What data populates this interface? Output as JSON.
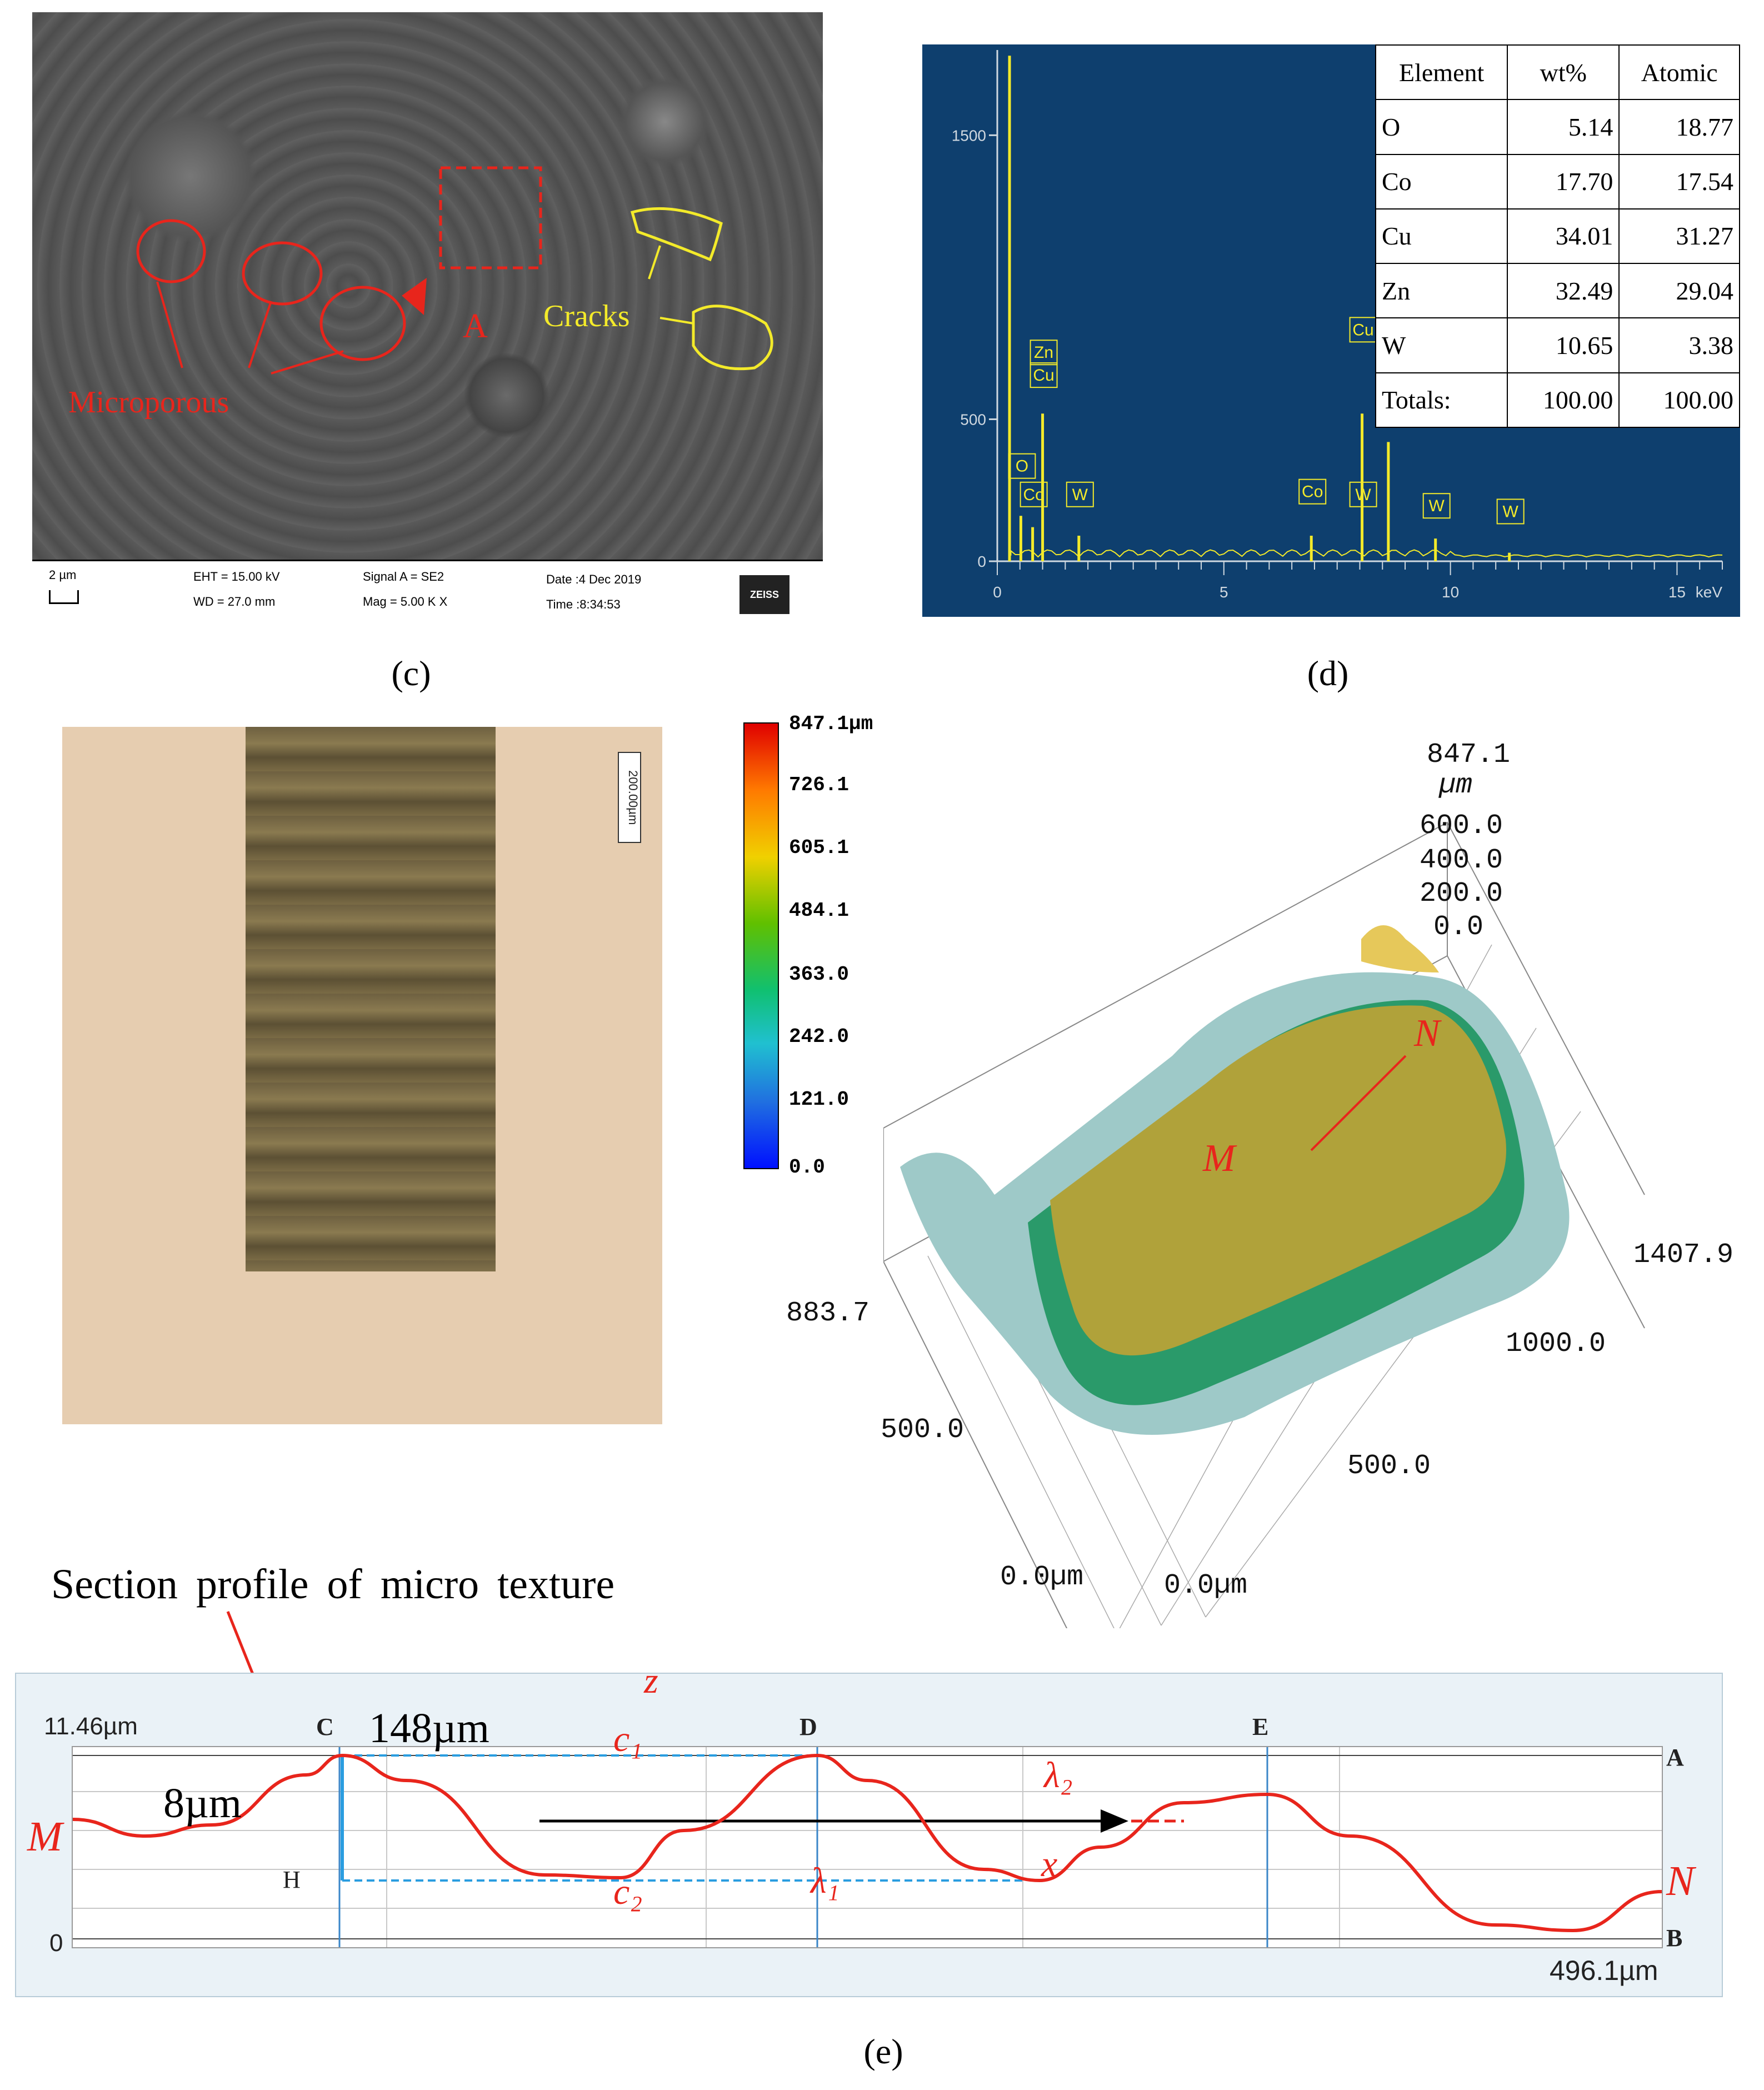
{
  "panel_c": {
    "labels": {
      "a": "A",
      "microporous": "Microporous",
      "cracks": "Cracks"
    },
    "databar": {
      "scale": "2 µm",
      "eht": "EHT = 15.00 kV",
      "wd": "WD = 27.0 mm",
      "signal": "Signal A = SE2",
      "mag": "Mag =     5.00 K X",
      "date": "Date :4 Dec 2019",
      "time": "Time :8:34:53",
      "logo": "ZEISS"
    },
    "caption": "(c)",
    "colors": {
      "red": "#e8251c",
      "yellow": "#f3ea2a"
    }
  },
  "panel_d": {
    "y_ticks": [
      "1500",
      "500",
      "0"
    ],
    "x_ticks": [
      "0",
      "5",
      "10",
      "15"
    ],
    "x_unit": "keV",
    "peaks": [
      "O",
      "Co",
      "Zn",
      "Cu",
      "W",
      "Co",
      "Cu",
      "W",
      "Zn",
      "W",
      "W"
    ],
    "table": {
      "headers": [
        "Element",
        "wt%",
        "Atomic"
      ],
      "rows": [
        [
          "O",
          "5.14",
          "18.77"
        ],
        [
          "Co",
          "17.70",
          "17.54"
        ],
        [
          "Cu",
          "34.01",
          "31.27"
        ],
        [
          "Zn",
          "32.49",
          "29.04"
        ],
        [
          "W",
          "10.65",
          "3.38"
        ],
        [
          "Totals:",
          "100.00",
          "100.00"
        ]
      ]
    },
    "caption": "(d)"
  },
  "chart_data": {
    "type": "bar",
    "xlabel": "keV",
    "xlim": [
      0,
      16
    ],
    "ylim": [
      0,
      1800
    ],
    "categories": [
      "O",
      "Co",
      "Zn/Cu",
      "W",
      "Co",
      "Cu",
      "Zn",
      "W",
      "W"
    ],
    "x": [
      0.52,
      0.78,
      1.0,
      1.8,
      6.93,
      8.05,
      8.63,
      9.67,
      11.3
    ],
    "values": [
      160,
      120,
      520,
      90,
      90,
      520,
      420,
      80,
      30
    ]
  },
  "photo": {
    "scale_label": "200.00µm"
  },
  "colorbar": {
    "labels": [
      "847.1µm",
      "726.1",
      "605.1",
      "484.1",
      "363.0",
      "242.0",
      "121.0",
      "0.0"
    ]
  },
  "plot3d": {
    "z_top": "847.1",
    "z_unit": "µm",
    "z_ticks": [
      "600.0",
      "400.0",
      "200.0",
      "0.0"
    ],
    "y_labels": [
      "883.7",
      "500.0",
      "0.0µm"
    ],
    "x_labels": [
      "1407.9",
      "1000.0",
      "500.0",
      "0.0µm"
    ],
    "m": "M",
    "n": "N"
  },
  "profile": {
    "title": "Section profile of micro texture",
    "y_top": "11.46µm",
    "y_bottom": "0",
    "x_right": "496.1µm",
    "markers": [
      "C",
      "D",
      "E"
    ],
    "right_labels": [
      "A",
      "B"
    ],
    "h": "H",
    "m": "M",
    "n": "N",
    "dims": {
      "width": "148µm",
      "height": "8µm"
    },
    "math": {
      "z": "z",
      "c1": "c₁",
      "c2": "c₂",
      "l1": "λ₁",
      "l2": "λ₂",
      "x": "x"
    },
    "caption": "(e)",
    "colors": {
      "curve": "#e8251c",
      "dim": "#2a9de0"
    }
  }
}
